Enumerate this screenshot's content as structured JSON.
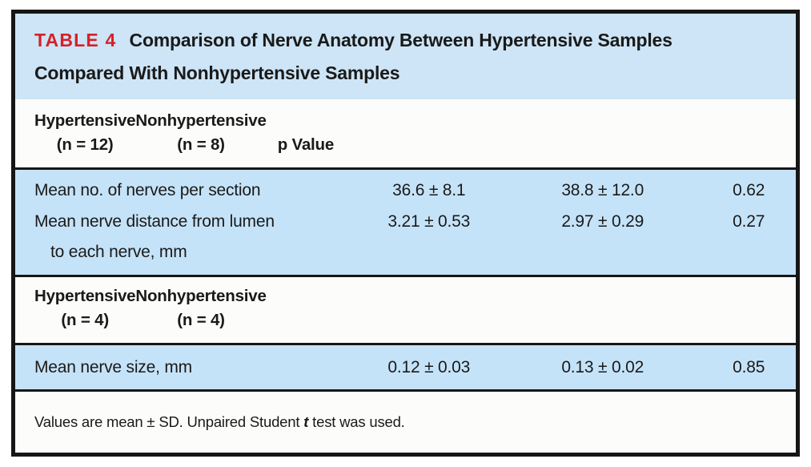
{
  "colors": {
    "title_bg": "#cde5f6",
    "row_bg": "#c5e3f8",
    "tag_red": "#d5212a",
    "border": "#161616",
    "text": "#1a1a1a",
    "section_bg": "#fcfcfa"
  },
  "title": {
    "label": "TABLE 4",
    "line1": "Comparison of Nerve Anatomy Between Hypertensive Samples",
    "line2": "Compared With Nonhypertensive Samples"
  },
  "header_group_1": {
    "columns": [
      {
        "name": "Hypertensive",
        "n": "(n = 12)"
      },
      {
        "name": "Nonhypertensive",
        "n": "(n = 8)"
      }
    ],
    "p_label": "p Value"
  },
  "section_1_rows": [
    {
      "label": "Mean no. of nerves per section",
      "hypertensive": "36.6 ± 8.1",
      "nonhypertensive": "38.8 ± 12.0",
      "p_value": "0.62"
    },
    {
      "label": "Mean nerve distance from lumen",
      "label_line2": "to each nerve, mm",
      "hypertensive": "3.21 ± 0.53",
      "nonhypertensive": "2.97 ± 0.29",
      "p_value": "0.27"
    }
  ],
  "header_group_2": {
    "columns": [
      {
        "name": "Hypertensive",
        "n": "(n = 4)"
      },
      {
        "name": "Nonhypertensive",
        "n": "(n = 4)"
      }
    ]
  },
  "section_2_rows": [
    {
      "label": "Mean nerve size, mm",
      "hypertensive": "0.12 ± 0.03",
      "nonhypertensive": "0.13 ± 0.02",
      "p_value": "0.85"
    }
  ],
  "footnote": {
    "part1": "Values are mean ± SD. Unpaired Student",
    "italic_term": "t",
    "part2": "test was used."
  }
}
